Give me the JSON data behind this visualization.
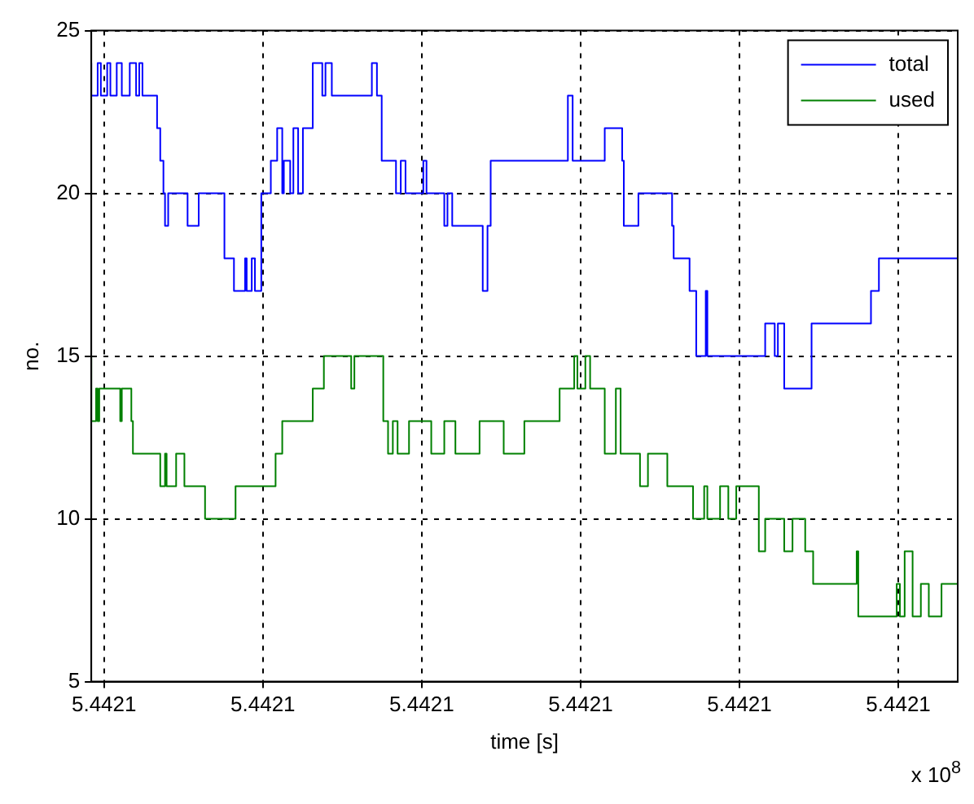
{
  "chart_data": {
    "type": "step",
    "xlabel": "time [s]",
    "ylabel": "no.",
    "annotations": [
      "x 10$^{8}$"
    ],
    "xlim": [
      5.4420996,
      5.44212687
    ],
    "xticks": [
      {
        "value": 5.4421,
        "label": "5.4421"
      },
      {
        "value": 5.442105,
        "label": "5.4421"
      },
      {
        "value": 5.44211,
        "label": "5.4421"
      },
      {
        "value": 5.442115,
        "label": "5.4421"
      },
      {
        "value": 5.44212,
        "label": "5.4421"
      },
      {
        "value": 5.442125,
        "label": "5.4421"
      }
    ],
    "ylim": [
      5,
      25
    ],
    "yticks": [
      5,
      10,
      15,
      20,
      25
    ],
    "grid": true,
    "legend": "top right",
    "marker": "none",
    "line_style": "solid",
    "series": [
      {
        "name": "total",
        "color": "#0000ff",
        "x": [
          5.4420996,
          5.4420998,
          5.4420999,
          5.4421001,
          5.4421002,
          5.4421004,
          5.44210056,
          5.44210081,
          5.44210101,
          5.44210111,
          5.44210121,
          5.44210167,
          5.44210177,
          5.44210187,
          5.44210192,
          5.44210202,
          5.44210263,
          5.44210298,
          5.44210379,
          5.44210409,
          5.44210444,
          5.44210449,
          5.44210465,
          5.44210475,
          5.44210495,
          5.44210525,
          5.44210545,
          5.44210561,
          5.44210566,
          5.44210586,
          5.44210596,
          5.44210611,
          5.44210626,
          5.44210657,
          5.44210687,
          5.44210697,
          5.44210717,
          5.44210843,
          5.44210859,
          5.44210874,
          5.44210919,
          5.44210934,
          5.44210949,
          5.44211005,
          5.44211015,
          5.44211071,
          5.44211081,
          5.44211096,
          5.44211192,
          5.44211207,
          5.44211217,
          5.4421146,
          5.44211475,
          5.44211576,
          5.44211631,
          5.44211636,
          5.44211682,
          5.44211788,
          5.44211793,
          5.44211843,
          5.44211864,
          5.44211894,
          5.44211899,
          5.44212081,
          5.44212111,
          5.44212121,
          5.44212141,
          5.44212227,
          5.44212414,
          5.44212439,
          5.44212449,
          5.44212687
        ],
        "values": [
          24,
          23,
          24,
          23,
          24,
          23,
          24,
          23,
          24,
          23,
          24,
          23,
          22,
          21,
          20,
          19,
          20,
          19,
          20,
          18,
          17,
          18,
          17,
          18,
          17,
          20,
          21,
          22,
          20,
          21,
          20,
          22,
          20,
          22,
          24,
          23,
          24,
          23,
          24,
          23,
          21,
          20,
          21,
          20,
          21,
          20,
          19,
          20,
          19,
          17,
          19,
          21,
          23,
          21,
          22,
          21,
          19,
          20,
          19,
          18,
          17,
          15,
          17,
          15,
          16,
          15,
          16,
          14,
          16,
          17,
          18,
          18
        ]
      },
      {
        "name": "used",
        "color": "#008000",
        "x": [
          5.4420996,
          5.44209975,
          5.4420998,
          5.44209985,
          5.44210051,
          5.44210056,
          5.44210086,
          5.44210091,
          5.44210177,
          5.44210192,
          5.44210197,
          5.44210227,
          5.44210253,
          5.44210318,
          5.44210414,
          5.4421054,
          5.44210561,
          5.44210657,
          5.44210692,
          5.44210778,
          5.44210788,
          5.44210879,
          5.44210894,
          5.44210909,
          5.44210924,
          5.4421096,
          5.4421103,
          5.44211071,
          5.44211106,
          5.44211182,
          5.44211258,
          5.44211323,
          5.44211434,
          5.4421148,
          5.4421149,
          5.44211515,
          5.4421153,
          5.44211576,
          5.44211611,
          5.44211626,
          5.44211687,
          5.44211712,
          5.44211773,
          5.44211854,
          5.44211889,
          5.44211899,
          5.44211939,
          5.44211965,
          5.4421199,
          5.44212061,
          5.44212081,
          5.44212141,
          5.44212167,
          5.44212207,
          5.44212232,
          5.44212369,
          5.44212374,
          5.44212495,
          5.44212505,
          5.4421252,
          5.44212545,
          5.44212571,
          5.44212596,
          5.44212636,
          5.44212646,
          5.44212687
        ],
        "values": [
          15,
          13,
          14,
          13,
          14,
          13,
          14,
          13,
          12,
          11,
          12,
          11,
          12,
          11,
          10,
          11,
          12,
          13,
          14,
          15,
          14,
          15,
          13,
          12,
          13,
          12,
          13,
          12,
          13,
          12,
          13,
          12,
          13,
          14,
          15,
          14,
          15,
          14,
          12,
          14,
          12,
          11,
          12,
          11,
          10,
          11,
          10,
          11,
          10,
          11,
          9,
          10,
          9,
          10,
          9,
          8,
          9,
          7,
          8,
          7,
          9,
          7,
          8,
          7,
          8,
          8
        ]
      }
    ]
  }
}
